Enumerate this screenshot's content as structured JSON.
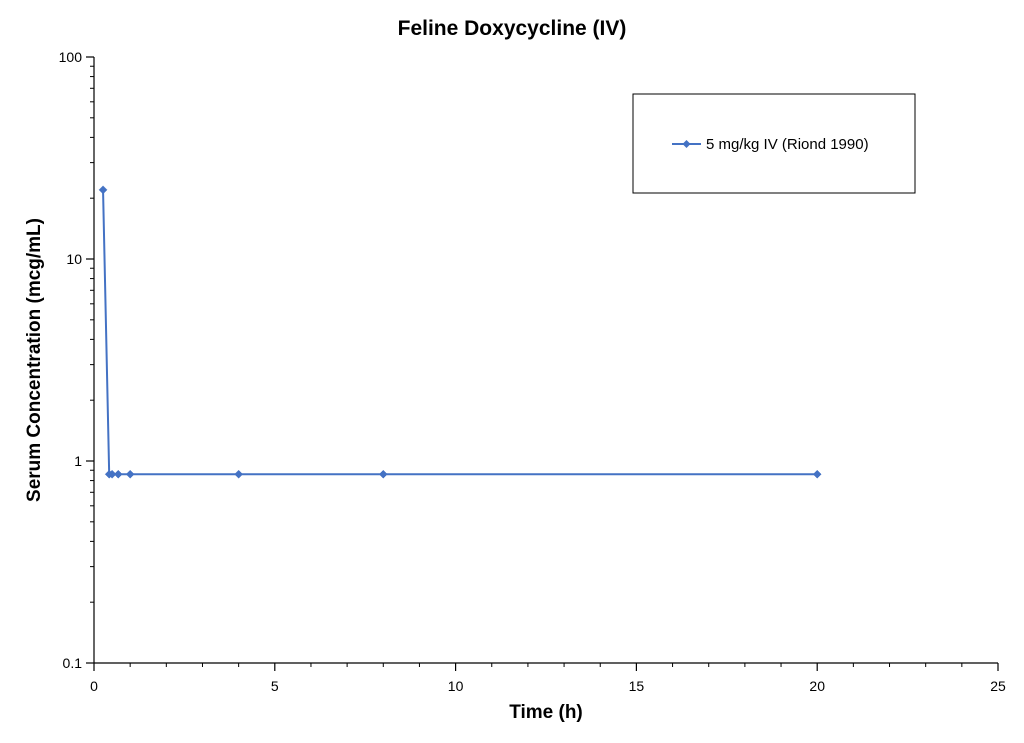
{
  "chart_data": {
    "type": "line",
    "title": "Feline Doxycycline (IV)",
    "xlabel": "Time (h)",
    "ylabel": "Serum Concentration (mcg/mL)",
    "xlim": [
      0,
      25
    ],
    "ylim": [
      0.1,
      100
    ],
    "y_scale": "log",
    "x_ticks": [
      0,
      5,
      10,
      15,
      20,
      25
    ],
    "x_tick_labels": [
      "0",
      "5",
      "10",
      "15",
      "20",
      "25"
    ],
    "y_ticks": [
      0.1,
      1,
      10,
      100
    ],
    "y_tick_labels": [
      "0.1",
      "1",
      "10",
      "100"
    ],
    "grid": false,
    "legend_position": "top-right",
    "series": [
      {
        "name": "5 mg/kg IV (Riond 1990)",
        "color": "#4472C4",
        "marker": "diamond",
        "x": [
          0.25,
          0.42,
          0.5,
          0.67,
          1,
          4,
          8,
          20
        ],
        "y": [
          22,
          0.86,
          0.86,
          0.86,
          0.86,
          0.86,
          0.86,
          0.86
        ]
      }
    ]
  }
}
